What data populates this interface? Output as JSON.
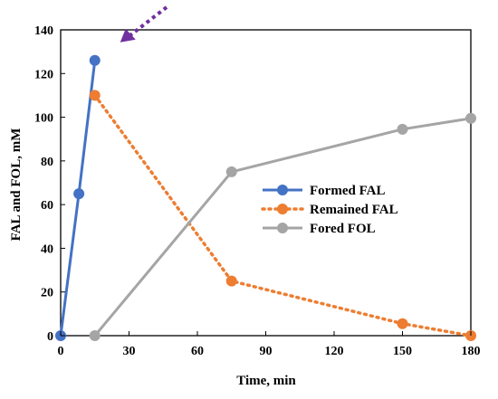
{
  "chart_data": {
    "type": "line",
    "xlabel": "Time, min",
    "ylabel": "FAL and FOL, mM",
    "xlim": [
      0,
      180
    ],
    "ylim": [
      0,
      140
    ],
    "xticks": [
      0,
      30,
      60,
      90,
      120,
      150,
      180
    ],
    "yticks": [
      0,
      20,
      40,
      60,
      80,
      100,
      120,
      140
    ],
    "grid": false,
    "legend_position": "center-right",
    "series": [
      {
        "name": "Formed FAL",
        "color": "#4472C4",
        "style": "solid",
        "x": [
          0,
          8,
          15
        ],
        "y": [
          0,
          65,
          126
        ]
      },
      {
        "name": "Remained FAL",
        "color": "#ED7D31",
        "style": "dotted",
        "x": [
          15,
          75,
          150,
          180
        ],
        "y": [
          110,
          25,
          5.5,
          0
        ]
      },
      {
        "name": "Fored FOL",
        "color": "#A5A5A5",
        "style": "solid",
        "x": [
          15,
          75,
          150,
          180
        ],
        "y": [
          0,
          75,
          94.5,
          99.5
        ]
      }
    ],
    "annotation": {
      "type": "dotted-arrow",
      "color": "#7030A0",
      "points_to": {
        "x": 15,
        "y": 126
      }
    }
  }
}
